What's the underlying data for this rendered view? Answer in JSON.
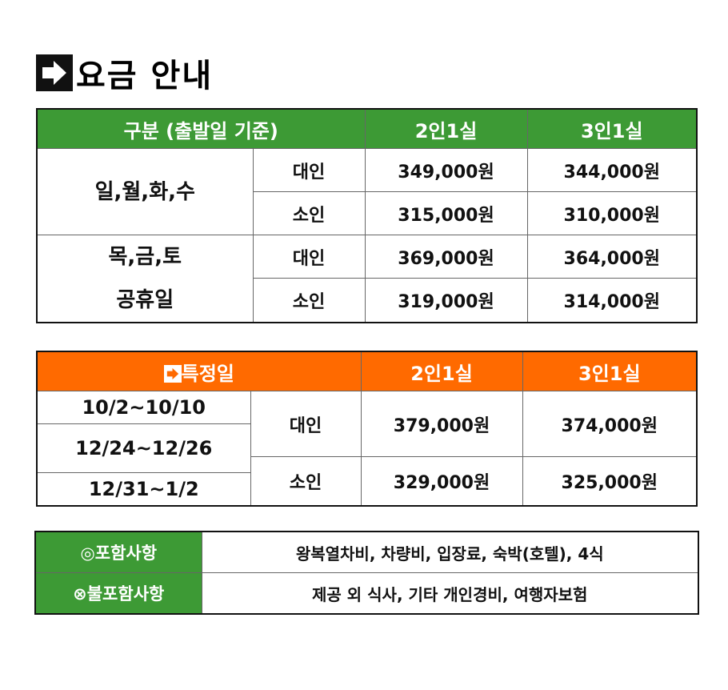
{
  "title": "요금 안내",
  "table1": {
    "header": [
      "구분 (출발일 기준)",
      "2인1실",
      "3인1실"
    ],
    "groups": [
      {
        "day": [
          "일,월,화,수"
        ],
        "rows": [
          [
            "대인",
            "349,000원",
            "344,000원"
          ],
          [
            "소인",
            "315,000원",
            "310,000원"
          ]
        ]
      },
      {
        "day": [
          "목,금,토",
          "공휴일"
        ],
        "rows": [
          [
            "대인",
            "369,000원",
            "364,000원"
          ],
          [
            "소인",
            "319,000원",
            "314,000원"
          ]
        ]
      }
    ]
  },
  "table2": {
    "header": [
      "특정일",
      "2인1실",
      "3인1실"
    ],
    "dates": [
      "10/2~10/10",
      "12/24~12/26",
      "12/31~1/2"
    ],
    "rows": [
      [
        "대인",
        "379,000원",
        "374,000원"
      ],
      [
        "소인",
        "329,000원",
        "325,000원"
      ]
    ]
  },
  "table3": {
    "rows": [
      [
        "◎포함사항",
        "왕복열차비, 차량비, 입장료, 숙박(호텔), 4식"
      ],
      [
        "⊗불포함사항",
        "제공 외 식사, 기타 개인경비, 여행자보험"
      ]
    ]
  }
}
